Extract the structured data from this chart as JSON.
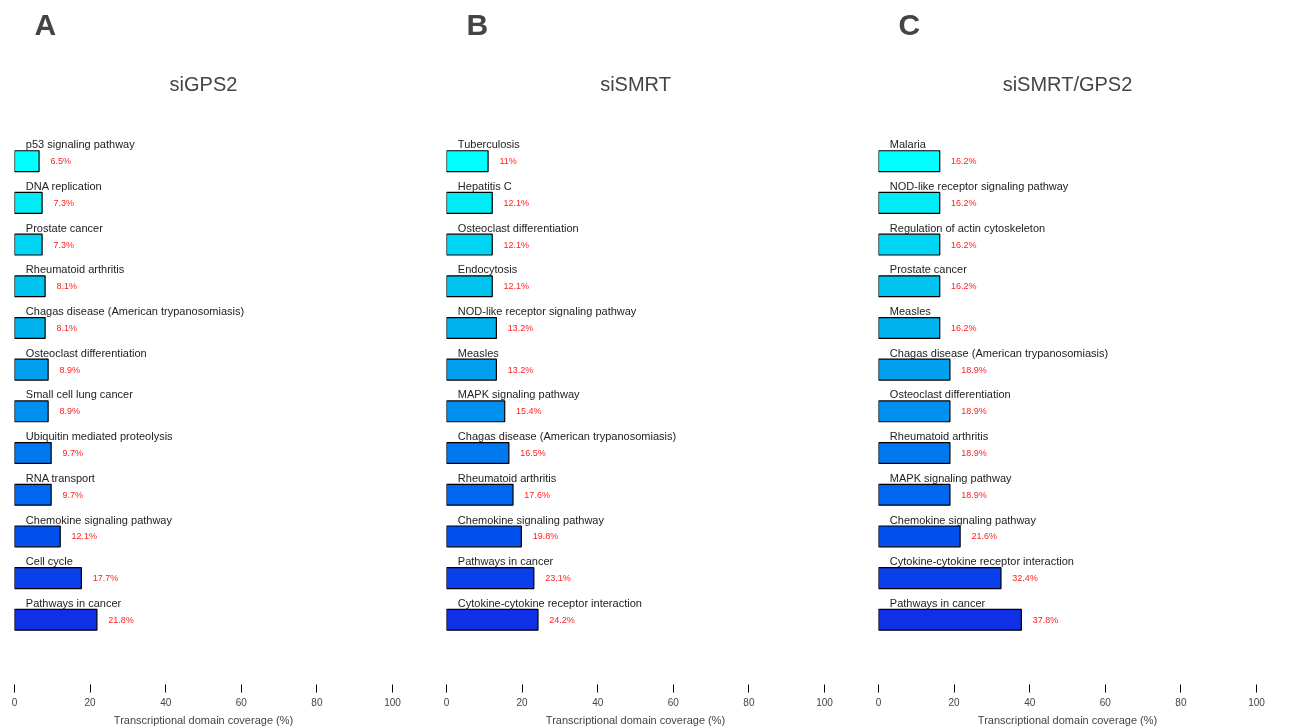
{
  "chart_data": [
    {
      "type": "bar",
      "orientation": "horizontal",
      "title": "siGPS2",
      "xlabel": "Transcriptional domain coverage (%)",
      "annotations": [
        "A"
      ],
      "grid": false,
      "xlim": [
        0,
        100
      ],
      "xticks": [
        0,
        20,
        40,
        60,
        80,
        100
      ],
      "categories": [
        "p53 signaling pathway",
        "DNA replication",
        "Prostate cancer",
        "Rheumatoid arthritis",
        "Chagas disease (American trypanosomiasis)",
        "Osteoclast differentiation",
        "Small cell lung cancer",
        "Ubiquitin mediated proteolysis",
        "RNA transport",
        "Chemokine signaling pathway",
        "Cell cycle",
        "Pathways in cancer"
      ],
      "values": [
        6.5,
        7.3,
        7.3,
        8.1,
        8.1,
        8.9,
        8.9,
        9.7,
        9.7,
        12.1,
        17.7,
        21.8
      ],
      "value_labels": [
        "6.5%",
        "7.3%",
        "7.3%",
        "8.1%",
        "8.1%",
        "8.9%",
        "8.9%",
        "9.7%",
        "9.7%",
        "12.1%",
        "17.7%",
        "21.8%"
      ],
      "colors": [
        "#00ffff",
        "#00eaf8",
        "#00d6f4",
        "#00c4f0",
        "#00b2ee",
        "#00a0ee",
        "#0090f0",
        "#0078ee",
        "#0068f0",
        "#0050ee",
        "#0a40ea",
        "#1030e8"
      ]
    },
    {
      "type": "bar",
      "orientation": "horizontal",
      "title": "siSMRT",
      "xlabel": "Transcriptional domain coverage (%)",
      "annotations": [
        "B"
      ],
      "grid": false,
      "xlim": [
        0,
        100
      ],
      "xticks": [
        0,
        20,
        40,
        60,
        80,
        100
      ],
      "categories": [
        "Tuberculosis",
        "Hepatitis C",
        "Osteoclast differentiation",
        "Endocytosis",
        "NOD-like receptor signaling pathway",
        "Measles",
        "MAPK signaling pathway",
        "Chagas disease (American trypanosomiasis)",
        "Rheumatoid arthritis",
        "Chemokine signaling pathway",
        "Pathways in cancer",
        "Cytokine-cytokine receptor interaction"
      ],
      "values": [
        11,
        12.1,
        12.1,
        12.1,
        13.2,
        13.2,
        15.4,
        16.5,
        17.6,
        19.8,
        23.1,
        24.2
      ],
      "value_labels": [
        "11%",
        "12.1%",
        "12.1%",
        "12.1%",
        "13.2%",
        "13.2%",
        "15.4%",
        "16.5%",
        "17.6%",
        "19.8%",
        "23.1%",
        "24.2%"
      ],
      "colors": [
        "#00ffff",
        "#00eaf8",
        "#00d6f4",
        "#00c4f0",
        "#00b2ee",
        "#00a0ee",
        "#0090f0",
        "#0078ee",
        "#0068f0",
        "#0050ee",
        "#0a40ea",
        "#1030e8"
      ]
    },
    {
      "type": "bar",
      "orientation": "horizontal",
      "title": "siSMRT/GPS2",
      "xlabel": "Transcriptional domain coverage (%)",
      "annotations": [
        "C"
      ],
      "grid": false,
      "xlim": [
        0,
        100
      ],
      "xticks": [
        0,
        20,
        40,
        60,
        80,
        100
      ],
      "categories": [
        "Malaria",
        "NOD-like receptor signaling pathway",
        "Regulation of actin cytoskeleton",
        "Prostate cancer",
        "Measles",
        "Chagas disease (American trypanosomiasis)",
        "Osteoclast differentiation",
        "Rheumatoid arthritis",
        "MAPK signaling pathway",
        "Chemokine signaling pathway",
        "Cytokine-cytokine receptor interaction",
        "Pathways in cancer"
      ],
      "values": [
        16.2,
        16.2,
        16.2,
        16.2,
        16.2,
        18.9,
        18.9,
        18.9,
        18.9,
        21.6,
        32.4,
        37.8
      ],
      "value_labels": [
        "16.2%",
        "16.2%",
        "16.2%",
        "16.2%",
        "16.2%",
        "18.9%",
        "18.9%",
        "18.9%",
        "18.9%",
        "21.6%",
        "32.4%",
        "37.8%"
      ],
      "colors": [
        "#00ffff",
        "#00eaf8",
        "#00d6f4",
        "#00c4f0",
        "#00b2ee",
        "#00a0ee",
        "#0090f0",
        "#0078ee",
        "#0068f0",
        "#0050ee",
        "#0a40ea",
        "#1030e8"
      ]
    }
  ]
}
